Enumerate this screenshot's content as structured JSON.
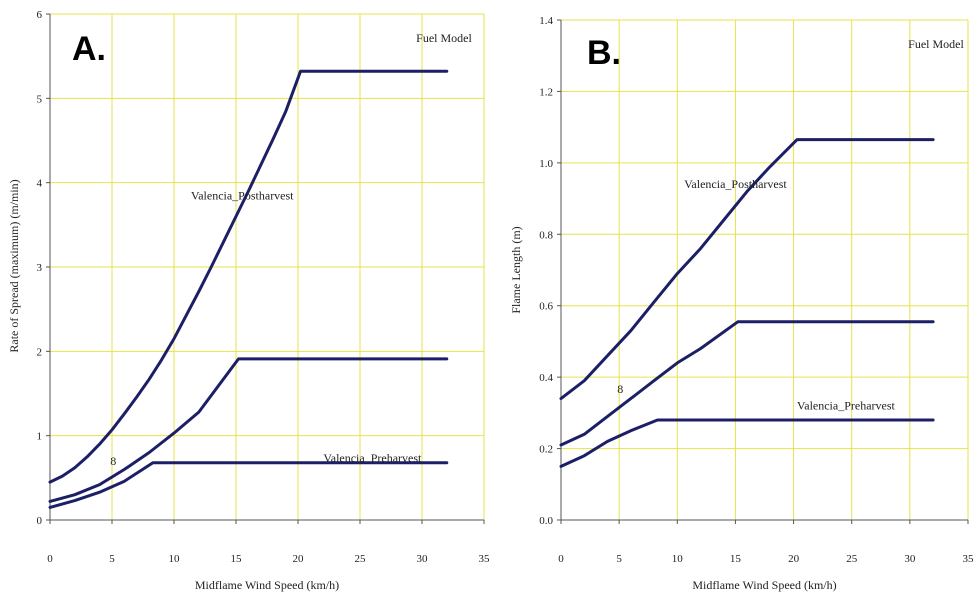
{
  "figure": {
    "colors": {
      "plot_bg": "#ffffff",
      "grid": "#e6e34a",
      "line": "#1c1f66",
      "frame": "#555555"
    }
  },
  "chart_data": [
    {
      "type": "line",
      "panel_label": "A.",
      "legend_title": "Fuel Model",
      "xlabel": "Midflame Wind Speed (km/h)",
      "ylabel": "Rate of Spread (maximum) (m/min)",
      "xlim": [
        0,
        35
      ],
      "ylim": [
        0,
        6
      ],
      "xticks": [
        0,
        5,
        10,
        15,
        20,
        25,
        30,
        35
      ],
      "yticks": [
        0,
        1,
        2,
        3,
        4,
        5,
        6
      ],
      "grid": true,
      "series": [
        {
          "name": "Valencia_Postharvest",
          "x": [
            0,
            1,
            2,
            3,
            4,
            5,
            6,
            7,
            8,
            9,
            10,
            11,
            12,
            13,
            14,
            15,
            16,
            17,
            18,
            19,
            20.2,
            32
          ],
          "y": [
            0.45,
            0.52,
            0.62,
            0.75,
            0.9,
            1.07,
            1.26,
            1.46,
            1.67,
            1.9,
            2.15,
            2.43,
            2.71,
            3.0,
            3.3,
            3.6,
            3.9,
            4.21,
            4.52,
            4.84,
            5.32,
            5.32
          ]
        },
        {
          "name": "",
          "x": [
            0,
            2,
            4,
            6,
            8,
            10,
            12,
            15.2,
            32
          ],
          "y": [
            0.22,
            0.3,
            0.42,
            0.6,
            0.8,
            1.03,
            1.28,
            1.91,
            1.91
          ]
        },
        {
          "name": "Valencia_Preharvest",
          "x": [
            0,
            2,
            4,
            6,
            8.3,
            32
          ],
          "y": [
            0.15,
            0.23,
            0.33,
            0.46,
            0.68,
            0.68
          ]
        }
      ],
      "annotations": [
        {
          "text": "Valencia_Postharvest",
          "x": 15.5,
          "y": 3.8
        },
        {
          "text": "Valencia_Preharvest",
          "x": 26,
          "y": 0.69
        },
        {
          "text": "8",
          "x": 5.1,
          "y": 0.65
        }
      ]
    },
    {
      "type": "line",
      "panel_label": "B.",
      "legend_title": "Fuel Model",
      "xlabel": "Midflame Wind Speed (km/h)",
      "ylabel": "Flame Length (m)",
      "xlim": [
        0,
        35
      ],
      "ylim": [
        0,
        1.4
      ],
      "xticks": [
        0,
        5,
        10,
        15,
        20,
        25,
        30,
        35
      ],
      "yticks": [
        0.0,
        0.2,
        0.4,
        0.6,
        0.8,
        1.0,
        1.2,
        1.4
      ],
      "yticklabels": [
        "0.0",
        "0.2",
        "0.4",
        "0.6",
        "0.8",
        "1.0",
        "1.2",
        "1.4"
      ],
      "grid": true,
      "series": [
        {
          "name": "Valencia_Postharvest",
          "x": [
            0,
            2,
            4,
            6,
            8,
            10,
            12,
            14,
            16,
            18,
            20.3,
            32
          ],
          "y": [
            0.34,
            0.39,
            0.46,
            0.53,
            0.61,
            0.69,
            0.76,
            0.84,
            0.92,
            0.99,
            1.065,
            1.065
          ]
        },
        {
          "name": "",
          "x": [
            0,
            2,
            4,
            6,
            8,
            10,
            12,
            15.2,
            32
          ],
          "y": [
            0.21,
            0.24,
            0.29,
            0.34,
            0.39,
            0.44,
            0.48,
            0.555,
            0.555
          ]
        },
        {
          "name": "Valencia_Preharvest",
          "x": [
            0,
            2,
            4,
            6,
            8.3,
            32
          ],
          "y": [
            0.15,
            0.18,
            0.22,
            0.25,
            0.28,
            0.28
          ]
        }
      ],
      "annotations": [
        {
          "text": "Valencia_Postharvest",
          "x": 15,
          "y": 0.93
        },
        {
          "text": "Valencia_Preharvest",
          "x": 24.5,
          "y": 0.31
        },
        {
          "text": "8",
          "x": 5.1,
          "y": 0.355
        }
      ]
    }
  ]
}
